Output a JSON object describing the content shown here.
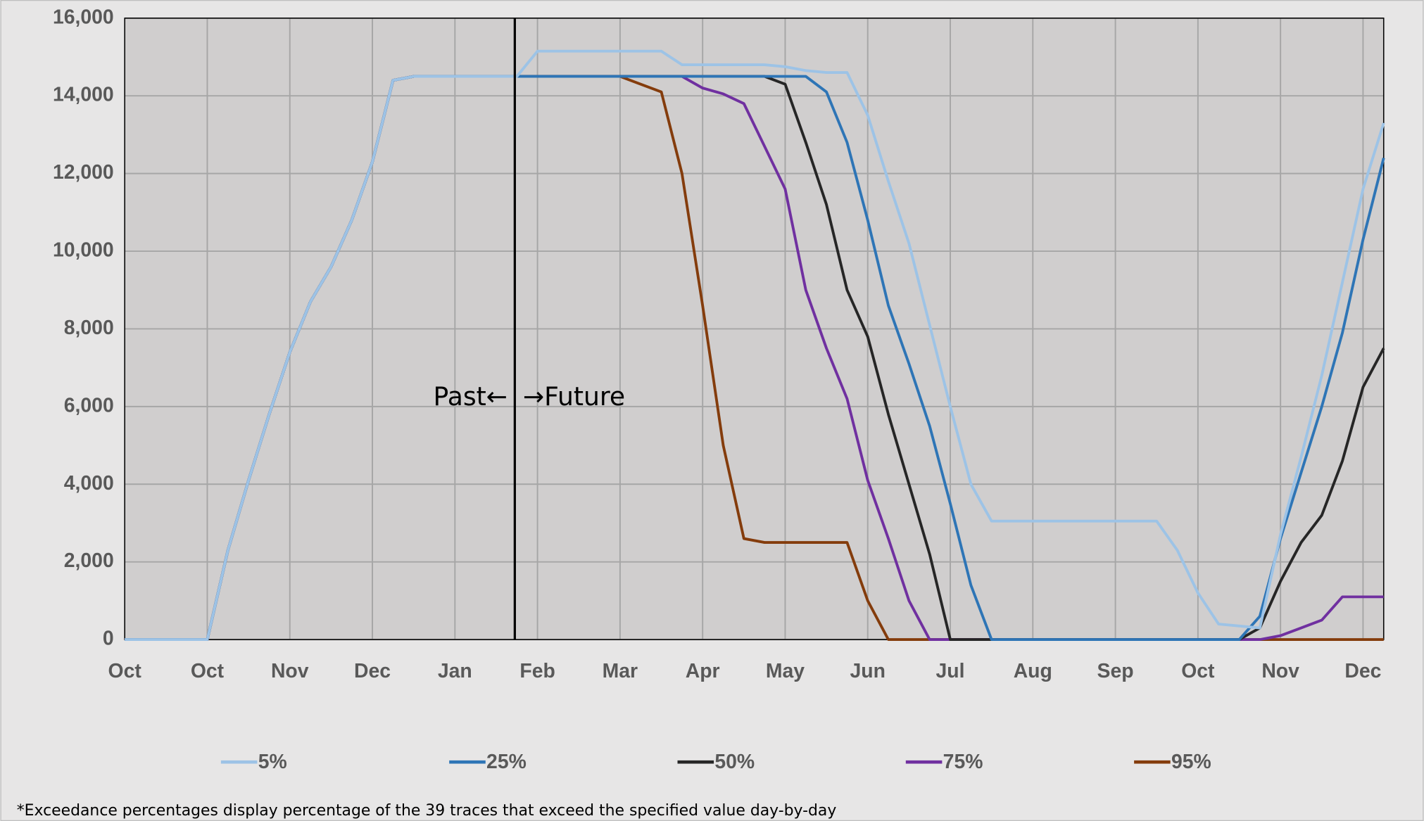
{
  "chart_data": {
    "type": "line",
    "categories": [
      "Oct",
      null,
      null,
      null,
      "Oct",
      null,
      null,
      null,
      "Nov",
      null,
      null,
      null,
      "Dec",
      null,
      null,
      null,
      "Jan",
      null,
      null,
      null,
      "Feb",
      null,
      null,
      null,
      "Mar",
      null,
      null,
      null,
      "Apr",
      null,
      null,
      null,
      "May",
      null,
      null,
      null,
      "Jun",
      null,
      null,
      null,
      "Jul",
      null,
      null,
      null,
      "Aug",
      null,
      null,
      null,
      "Sep",
      null,
      null,
      null,
      "Oct",
      null,
      null,
      null,
      "Nov",
      null,
      null,
      null,
      "Dec",
      null
    ],
    "series": [
      {
        "name": "5%",
        "color": "#9dc3e6",
        "values": [
          0,
          0,
          0,
          0,
          0,
          2300,
          4100,
          5800,
          7400,
          8700,
          9600,
          10800,
          12300,
          14400,
          14500,
          14500,
          14500,
          14500,
          14500,
          14500,
          15150,
          15150,
          15150,
          15150,
          15150,
          15150,
          15150,
          14800,
          14800,
          14800,
          14800,
          14800,
          14750,
          14650,
          14600,
          14600,
          13500,
          11800,
          10200,
          8100,
          6000,
          4000,
          3050,
          3050,
          3050,
          3050,
          3050,
          3050,
          3050,
          3050,
          3050,
          2300,
          1200,
          400,
          350,
          300,
          2700,
          4700,
          6800,
          9200,
          11600,
          13300
        ]
      },
      {
        "name": "25%",
        "color": "#2e75b6",
        "values": [
          0,
          0,
          0,
          0,
          0,
          2300,
          4100,
          5800,
          7400,
          8700,
          9600,
          10800,
          12300,
          14400,
          14500,
          14500,
          14500,
          14500,
          14500,
          14500,
          14500,
          14500,
          14500,
          14500,
          14500,
          14500,
          14500,
          14500,
          14500,
          14500,
          14500,
          14500,
          14500,
          14500,
          14100,
          12800,
          10800,
          8600,
          7100,
          5500,
          3500,
          1400,
          0,
          0,
          0,
          0,
          0,
          0,
          0,
          0,
          0,
          0,
          0,
          0,
          0,
          600,
          2600,
          4300,
          6000,
          7900,
          10300,
          12400
        ]
      },
      {
        "name": "50%",
        "color": "#262626",
        "values": [
          0,
          0,
          0,
          0,
          0,
          2300,
          4100,
          5800,
          7400,
          8700,
          9600,
          10800,
          12300,
          14400,
          14500,
          14500,
          14500,
          14500,
          14500,
          14500,
          14500,
          14500,
          14500,
          14500,
          14500,
          14500,
          14500,
          14500,
          14500,
          14500,
          14500,
          14500,
          14300,
          12800,
          11200,
          9000,
          7800,
          5800,
          4000,
          2200,
          0,
          0,
          0,
          0,
          0,
          0,
          0,
          0,
          0,
          0,
          0,
          0,
          0,
          0,
          0,
          300,
          1500,
          2500,
          3200,
          4600,
          6500,
          7500
        ]
      },
      {
        "name": "75%",
        "color": "#7030a0",
        "values": [
          0,
          0,
          0,
          0,
          0,
          2300,
          4100,
          5800,
          7400,
          8700,
          9600,
          10800,
          12300,
          14400,
          14500,
          14500,
          14500,
          14500,
          14500,
          14500,
          14500,
          14500,
          14500,
          14500,
          14500,
          14500,
          14500,
          14500,
          14200,
          14050,
          13800,
          12700,
          11600,
          9000,
          7500,
          6200,
          4100,
          2600,
          1000,
          0,
          0,
          0,
          0,
          0,
          0,
          0,
          0,
          0,
          0,
          0,
          0,
          0,
          0,
          0,
          0,
          0,
          100,
          300,
          500,
          1100,
          1100,
          1100
        ]
      },
      {
        "name": "95%",
        "color": "#843c0c",
        "values": [
          0,
          0,
          0,
          0,
          0,
          2300,
          4100,
          5800,
          7400,
          8700,
          9600,
          10800,
          12300,
          14400,
          14500,
          14500,
          14500,
          14500,
          14500,
          14500,
          14500,
          14500,
          14500,
          14500,
          14500,
          14300,
          14100,
          12000,
          8600,
          5000,
          2600,
          2500,
          2500,
          2500,
          2500,
          2500,
          1000,
          0,
          0,
          0,
          0,
          0,
          0,
          0,
          0,
          0,
          0,
          0,
          0,
          0,
          0,
          0,
          0,
          0,
          0,
          0,
          0,
          0,
          0,
          0,
          0,
          0
        ]
      }
    ],
    "ylim": [
      0,
      16000
    ],
    "yticks": [
      0,
      {
        "value": 2000,
        "label": "2,000"
      },
      {
        "value": 4000,
        "label": "4,000"
      },
      {
        "value": 6000,
        "label": "6,000"
      },
      {
        "value": 8000,
        "label": "8,000"
      },
      {
        "value": 10000,
        "label": "10,000"
      },
      {
        "value": 12000,
        "label": "12,000"
      },
      {
        "value": 14000,
        "label": "14,000"
      },
      {
        "value": 16000,
        "label": "16,000"
      }
    ],
    "grid": true,
    "legend": "bottom",
    "annotations": [
      "Past←",
      "→Future"
    ],
    "footnote": "*Exceedance percentages display percentage of the 39 traces that exceed the specified value day-by-day"
  }
}
